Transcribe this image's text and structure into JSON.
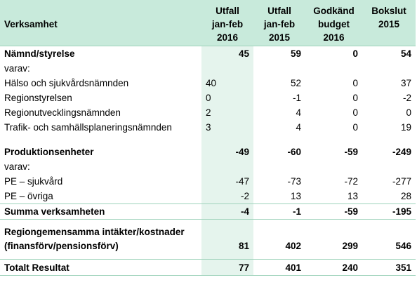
{
  "header": {
    "verksamhet": "Verksamhet",
    "col1": [
      "Utfall",
      "jan-feb",
      "2016"
    ],
    "col2": [
      "Utfall",
      "jan-feb",
      "2015"
    ],
    "col3": [
      "Godkänd",
      "budget",
      "2016"
    ],
    "col4": [
      "Bokslut",
      "2015"
    ]
  },
  "rows": {
    "namnd": {
      "label": "Nämnd/styrelse",
      "v": [
        "45",
        "59",
        "0",
        "54"
      ]
    },
    "varav1": {
      "label": "varav:"
    },
    "halso": {
      "label": "Hälso och sjukvårdsnämnden",
      "v": [
        "40",
        "52",
        "0",
        "37"
      ]
    },
    "region": {
      "label": "Regionstyrelsen",
      "v": [
        "0",
        "-1",
        "0",
        "-2"
      ]
    },
    "regut": {
      "label": "Regionutvecklingsnämnden",
      "v": [
        "2",
        "4",
        "0",
        "0"
      ]
    },
    "trafik": {
      "label": "Trafik- och samhällsplaneringsnämnden",
      "v": [
        "3",
        "4",
        "0",
        "19"
      ]
    },
    "prod": {
      "label": "Produktionsenheter",
      "v": [
        "-49",
        "-60",
        "-59",
        "-249"
      ]
    },
    "varav2": {
      "label": "varav:"
    },
    "pesjuk": {
      "label": "PE – sjukvård",
      "v": [
        "-47",
        "-73",
        "-72",
        "-277"
      ]
    },
    "peovr": {
      "label": "PE – övriga",
      "v": [
        "-2",
        "13",
        "13",
        "28"
      ]
    },
    "summa": {
      "label": "Summa verksamheten",
      "v": [
        "-4",
        "-1",
        "-59",
        "-195"
      ]
    },
    "regiongem": {
      "label1": "Regiongemensamma intäkter/kostnader",
      "label2": "(finansförv/pensionsförv)",
      "v": [
        "81",
        "402",
        "299",
        "546"
      ]
    },
    "totalt": {
      "label": "Totalt Resultat",
      "v": [
        "77",
        "401",
        "240",
        "351"
      ]
    }
  },
  "colors": {
    "header_bg": "#c8eadb",
    "highlight_col": "#e5f4ed",
    "rule": "#9fd3bb"
  }
}
